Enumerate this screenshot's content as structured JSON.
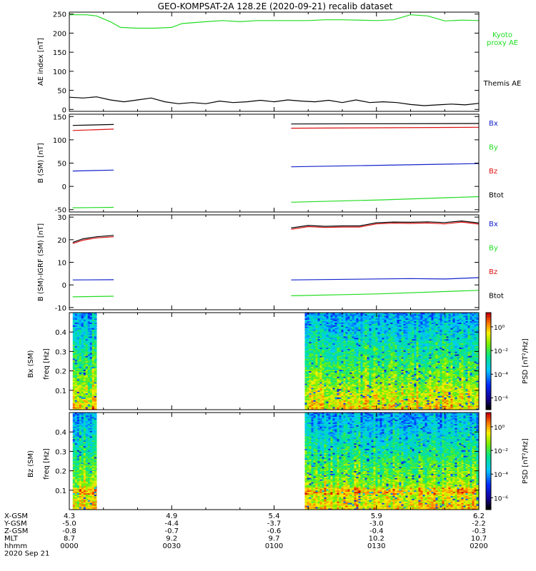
{
  "title": "GEO-KOMPSAT-2A 128.2E (2020-09-21) recalib dataset",
  "colors": {
    "green": "#22dd22",
    "black": "#000000",
    "red": "#dd1111",
    "blue": "#1122cc"
  },
  "chart_data": [
    {
      "type": "line",
      "panel": "ae_index",
      "ylabel": "AE index [nT]",
      "ylim": [
        -5,
        255
      ],
      "yticks": [
        0,
        50,
        100,
        150,
        200,
        250
      ],
      "xlim": [
        0,
        120
      ],
      "series": [
        {
          "name": "Kyoto proxy AE",
          "label_lines": [
            "Kyoto",
            "proxy AE"
          ],
          "color": "#22dd22",
          "x": [
            0,
            5,
            8,
            12,
            15,
            20,
            25,
            30,
            33,
            40,
            45,
            50,
            55,
            60,
            70,
            75,
            80,
            90,
            95,
            100,
            105,
            110,
            115,
            120
          ],
          "y": [
            248,
            248,
            245,
            230,
            215,
            213,
            213,
            215,
            225,
            230,
            233,
            230,
            233,
            233,
            233,
            235,
            235,
            233,
            235,
            248,
            245,
            232,
            234,
            233
          ]
        },
        {
          "name": "Themis AE",
          "label_lines": [
            "Themis AE"
          ],
          "color": "#000000",
          "x": [
            0,
            4,
            8,
            12,
            16,
            20,
            24,
            28,
            32,
            36,
            40,
            44,
            48,
            52,
            56,
            60,
            64,
            68,
            72,
            76,
            80,
            84,
            88,
            92,
            96,
            100,
            104,
            108,
            112,
            116,
            120
          ],
          "y": [
            32,
            30,
            33,
            25,
            20,
            25,
            30,
            20,
            15,
            18,
            15,
            22,
            18,
            20,
            24,
            20,
            25,
            22,
            20,
            24,
            18,
            25,
            18,
            20,
            18,
            13,
            10,
            12,
            14,
            12,
            16
          ]
        }
      ]
    },
    {
      "type": "line",
      "panel": "b_sm",
      "ylabel": "B (SM) [nT]",
      "ylim": [
        -55,
        155
      ],
      "yticks": [
        -50,
        0,
        50,
        100,
        150
      ],
      "xlim": [
        0,
        120
      ],
      "series": [
        {
          "name": "Bx",
          "color": "#1122cc",
          "segments": [
            {
              "x": [
                1,
                13
              ],
              "y": [
                33,
                35
              ]
            },
            {
              "x": [
                65,
                120
              ],
              "y": [
                42,
                49
              ]
            }
          ]
        },
        {
          "name": "By",
          "color": "#22dd22",
          "segments": [
            {
              "x": [
                1,
                13
              ],
              "y": [
                -46,
                -45
              ]
            },
            {
              "x": [
                65,
                92,
                120
              ],
              "y": [
                -34,
                -29,
                -22
              ]
            }
          ]
        },
        {
          "name": "Bz",
          "color": "#dd1111",
          "segments": [
            {
              "x": [
                1,
                13
              ],
              "y": [
                120,
                123
              ]
            },
            {
              "x": [
                65,
                120
              ],
              "y": [
                125,
                127
              ]
            }
          ]
        },
        {
          "name": "Btot",
          "color": "#000000",
          "segments": [
            {
              "x": [
                1,
                13
              ],
              "y": [
                131,
                133
              ]
            },
            {
              "x": [
                65,
                120
              ],
              "y": [
                134,
                135
              ]
            }
          ]
        }
      ]
    },
    {
      "type": "line",
      "panel": "b_minus_igrf",
      "ylabel": "B (SM)-IGRF (SM) [nT]",
      "ylim": [
        -11,
        31
      ],
      "yticks": [
        -10,
        0,
        10,
        20,
        30
      ],
      "xlim": [
        0,
        120
      ],
      "series": [
        {
          "name": "Bx",
          "color": "#1122cc",
          "segments": [
            {
              "x": [
                1,
                13
              ],
              "y": [
                2.2,
                2.3
              ]
            },
            {
              "x": [
                65,
                100,
                110,
                120
              ],
              "y": [
                2.2,
                2.8,
                2.6,
                3.2
              ]
            }
          ]
        },
        {
          "name": "By",
          "color": "#22dd22",
          "segments": [
            {
              "x": [
                1,
                13
              ],
              "y": [
                -5.3,
                -5.0
              ]
            },
            {
              "x": [
                65,
                90,
                120
              ],
              "y": [
                -4.8,
                -4.0,
                -2.4
              ]
            }
          ]
        },
        {
          "name": "Bz",
          "color": "#dd1111",
          "segments": [
            {
              "x": [
                1,
                4,
                8,
                13
              ],
              "y": [
                18.3,
                19.8,
                20.8,
                21.3
              ]
            },
            {
              "x": [
                65,
                70,
                75,
                80,
                85,
                90,
                95,
                100,
                105,
                110,
                115,
                120
              ],
              "y": [
                24.6,
                25.8,
                25.4,
                25.6,
                25.6,
                27.0,
                27.3,
                27.2,
                27.4,
                27.0,
                27.8,
                26.9
              ]
            }
          ]
        },
        {
          "name": "Btot",
          "color": "#000000",
          "segments": [
            {
              "x": [
                1,
                4,
                8,
                13
              ],
              "y": [
                18.8,
                20.4,
                21.3,
                21.9
              ]
            },
            {
              "x": [
                65,
                70,
                75,
                80,
                85,
                90,
                95,
                100,
                105,
                110,
                115,
                120
              ],
              "y": [
                25.2,
                26.3,
                25.9,
                26.1,
                26.1,
                27.5,
                27.8,
                27.7,
                27.9,
                27.6,
                28.3,
                27.4
              ]
            }
          ]
        }
      ]
    },
    {
      "type": "heatmap",
      "panel": "bx_psd",
      "ylabel": "freq [Hz]",
      "panel_label": "Bx (SM)",
      "ylim": [
        0,
        0.5
      ],
      "yticks": [
        0.1,
        0.2,
        0.3,
        0.4
      ],
      "xlim": [
        0,
        120
      ],
      "data_ranges": [
        [
          1,
          8
        ],
        [
          69,
          120
        ]
      ]
    },
    {
      "type": "heatmap",
      "panel": "bz_psd",
      "ylabel": "freq [Hz]",
      "panel_label": "Bz (SM)",
      "ylim": [
        0,
        0.5
      ],
      "yticks": [
        0.1,
        0.2,
        0.3,
        0.4
      ],
      "xlim": [
        0,
        120
      ],
      "data_ranges": [
        [
          1,
          8
        ],
        [
          69,
          120
        ]
      ]
    }
  ],
  "colorbar": {
    "label": "PSD [nT²/Hz]",
    "tick_labels": [
      "10⁰",
      "10⁻²",
      "10⁻⁴",
      "10⁻⁶"
    ],
    "tick_exponents": [
      0,
      -2,
      -4,
      -6
    ],
    "range_exponents": [
      -7,
      1.2
    ]
  },
  "x_axis": {
    "row_labels": [
      "X-GSM",
      "Y-GSM",
      "Z-GSM",
      "MLT",
      "hhmm"
    ],
    "ticks": [
      {
        "t": 0,
        "values": [
          "4.3",
          "-5.0",
          "-0.8",
          "8.7",
          "0000"
        ]
      },
      {
        "t": 30,
        "values": [
          "4.9",
          "-4.4",
          "-0.7",
          "9.2",
          "0030"
        ]
      },
      {
        "t": 60,
        "values": [
          "5.4",
          "-3.7",
          "-0.6",
          "9.7",
          "0100"
        ]
      },
      {
        "t": 90,
        "values": [
          "5.9",
          "-3.0",
          "-0.4",
          "10.2",
          "0130"
        ]
      },
      {
        "t": 120,
        "values": [
          "6.2",
          "-2.2",
          "-0.3",
          "10.7",
          "0200"
        ]
      }
    ],
    "date": "2020 Sep 21"
  }
}
